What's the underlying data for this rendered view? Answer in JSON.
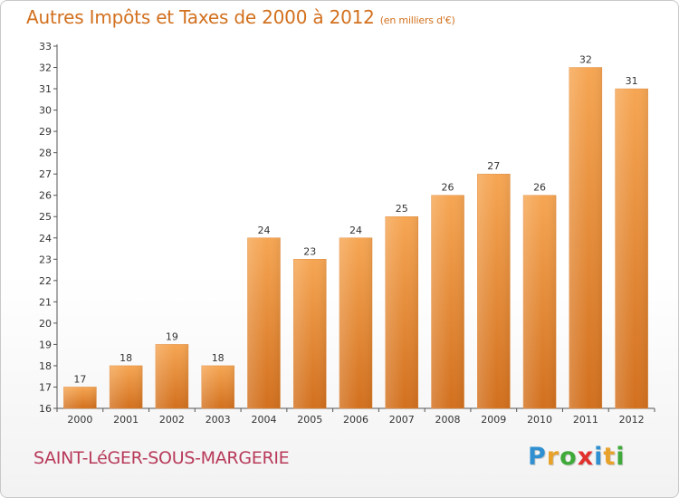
{
  "title": {
    "main": "Autres Impôts et Taxes de 2000 à 2012",
    "unit": "(en milliers d'€)"
  },
  "footer": {
    "place": "SAINT-LéGER-SOUS-MARGERIE",
    "logo_letters": [
      "P",
      "r",
      "o",
      "x",
      "i",
      "t",
      "i"
    ],
    "logo_colors": [
      "#2f8fd0",
      "#e8a22a",
      "#3faa3a",
      "#e0312f",
      "#2f8fd0",
      "#e8a22a",
      "#3faa3a"
    ]
  },
  "chart_data": {
    "type": "bar",
    "categories": [
      "2000",
      "2001",
      "2002",
      "2003",
      "2004",
      "2005",
      "2006",
      "2007",
      "2008",
      "2009",
      "2010",
      "2011",
      "2012"
    ],
    "values": [
      17,
      18,
      19,
      18,
      24,
      23,
      24,
      25,
      26,
      27,
      26,
      32,
      31
    ],
    "ylim": [
      16,
      33
    ],
    "yticks": [
      16,
      17,
      18,
      19,
      20,
      21,
      22,
      23,
      24,
      25,
      26,
      27,
      28,
      29,
      30,
      31,
      32,
      33
    ],
    "grid": false,
    "bar_color_top": "#f6a653",
    "bar_color_bottom": "#d2701e"
  }
}
